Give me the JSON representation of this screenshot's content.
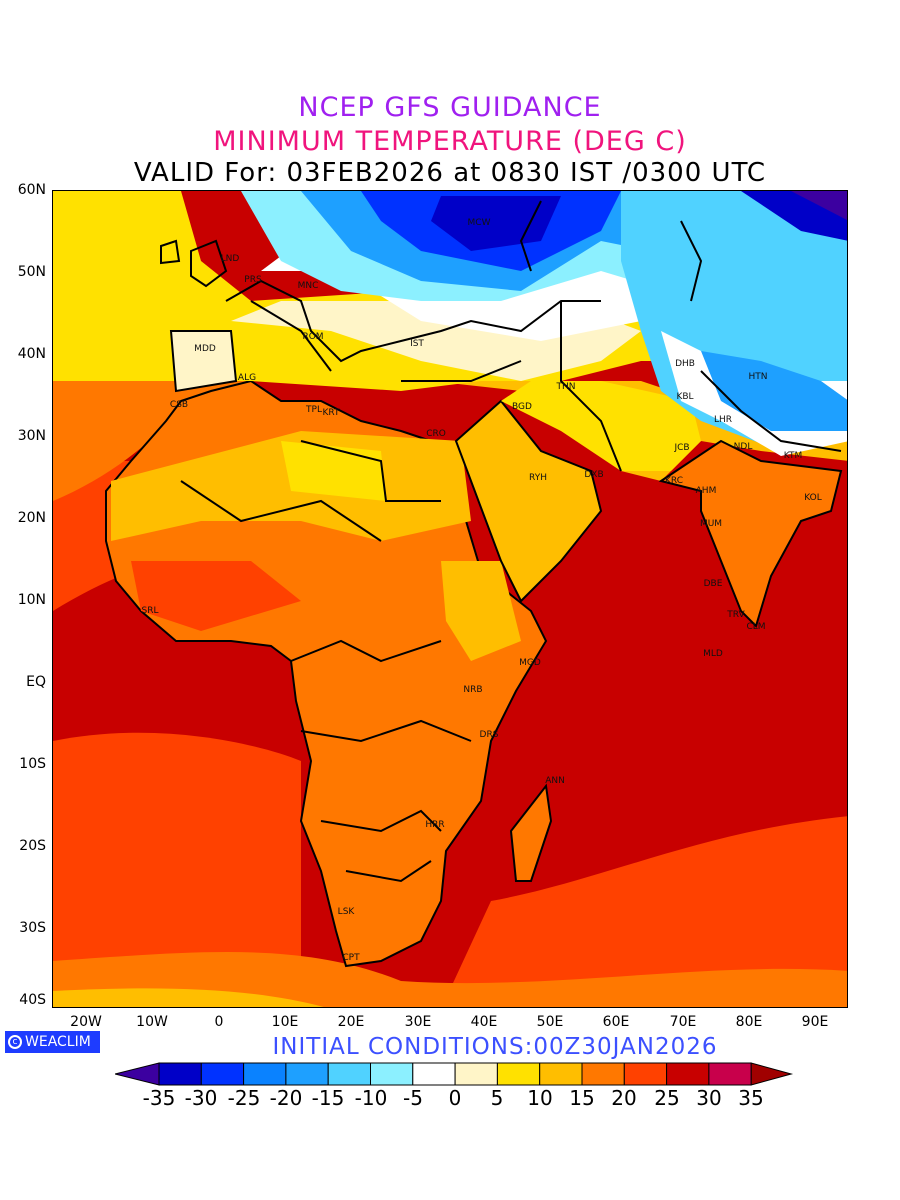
{
  "titles": {
    "line1": "NCEP GFS GUIDANCE",
    "line2": "MINIMUM TEMPERATURE (DEG C)",
    "line3": "VALID For: 03FEB2026 at 0830 IST /0300 UTC"
  },
  "axes": {
    "lat_labels": [
      "60N",
      "50N",
      "40N",
      "30N",
      "20N",
      "10N",
      "EQ",
      "10S",
      "20S",
      "30S",
      "40S"
    ],
    "lon_labels": [
      "20W",
      "10W",
      "0",
      "10E",
      "20E",
      "30E",
      "40E",
      "50E",
      "60E",
      "70E",
      "80E",
      "90E"
    ]
  },
  "cities": [
    "MCW",
    "LND",
    "PRS",
    "MNC",
    "ROM",
    "MDD",
    "IST",
    "ALG",
    "CSB",
    "TPL",
    "KRT",
    "CRO",
    "BGD",
    "THN",
    "DHB",
    "HTN",
    "KBL",
    "LHR",
    "NDL",
    "JCB",
    "KRC",
    "AHM",
    "RYH",
    "DXB",
    "KTM",
    "KOL",
    "MUM",
    "DBE",
    "TRV",
    "CLM",
    "MLD",
    "SRL",
    "MGD",
    "NRB",
    "DRS",
    "ANN",
    "HRR",
    "LSK",
    "CPT"
  ],
  "logo": {
    "text": "WEACLIM"
  },
  "initial_conditions": "INITIAL  CONDITIONS:00Z30JAN2026",
  "colorbar": {
    "labels": [
      "-35",
      "-30",
      "-25",
      "-20",
      "-15",
      "-10",
      "-5",
      "0",
      "5",
      "10",
      "15",
      "20",
      "25",
      "30",
      "35"
    ],
    "colors": [
      "#3c00a0",
      "#0000c8",
      "#0032ff",
      "#0a82ff",
      "#1ea0ff",
      "#50d2ff",
      "#8cf0ff",
      "#ffffff",
      "#fff5c8",
      "#ffe100",
      "#ffbe00",
      "#ff7800",
      "#ff4100",
      "#c80000",
      "#c8004b",
      "#a00000"
    ]
  }
}
